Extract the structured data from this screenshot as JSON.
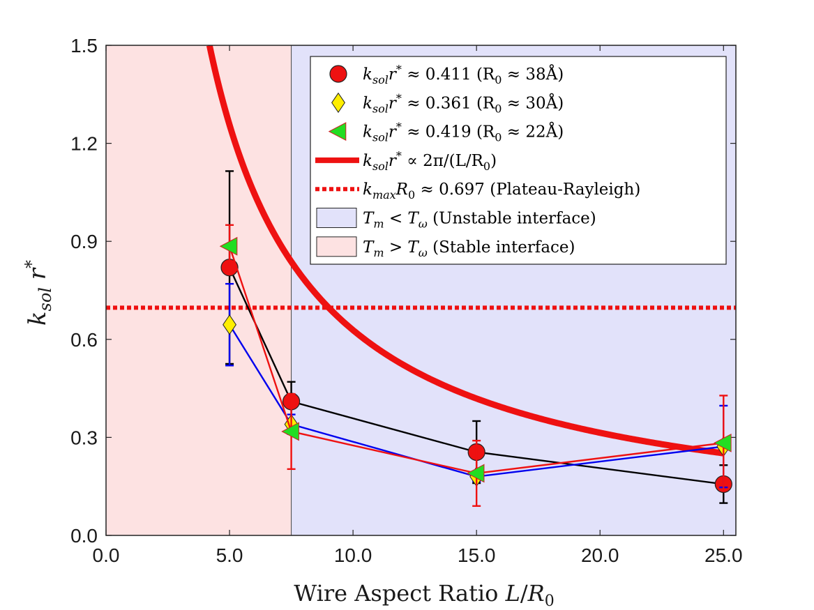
{
  "chart_data": {
    "type": "scatter",
    "xlabel": "Wire Aspect Ratio L/R₀",
    "ylabel": "k_sol r*",
    "xlim": [
      0,
      25.5
    ],
    "ylim": [
      0,
      1.5
    ],
    "x_ticks": [
      "0.0",
      "5.0",
      "10.0",
      "15.0",
      "20.0",
      "25.0"
    ],
    "y_ticks": [
      "0.0",
      "0.3",
      "0.6",
      "0.9",
      "1.2",
      "1.5"
    ],
    "regions": [
      {
        "name": "stable",
        "x_range": [
          0,
          7.5
        ],
        "color": "#fde2e2",
        "label": "Tm > Tω (Stable interface)"
      },
      {
        "name": "unstable",
        "x_range": [
          7.5,
          25.5
        ],
        "color": "#e2e2fa",
        "label": "Tm < Tω (Unstable interface)"
      }
    ],
    "series": [
      {
        "name": "ksol r* ≈ 0.411 (R0 ≈ 38Å)",
        "marker": "circle",
        "color": "#ee1111",
        "line_color": "#000000",
        "x": [
          5,
          7.5,
          15,
          25
        ],
        "y": [
          0.82,
          0.41,
          0.255,
          0.157
        ],
        "err": [
          0.295,
          0.06,
          0.095,
          0.058
        ]
      },
      {
        "name": "ksol r* ≈ 0.361 (R0 ≈ 30Å)",
        "marker": "diamond",
        "color": "#ffee00",
        "line_color": "#0000ee",
        "x": [
          5,
          7.5,
          15,
          25
        ],
        "y": [
          0.645,
          0.34,
          0.18,
          0.272
        ],
        "err": [
          0.125,
          0.03,
          0.015,
          0.125
        ]
      },
      {
        "name": "ksol r* ≈ 0.419 (R0 ≈ 22Å)",
        "marker": "triangle-left",
        "color": "#22dd22",
        "line_color": "#ee1111",
        "x": [
          5,
          7.5,
          15,
          25
        ],
        "y": [
          0.885,
          0.318,
          0.19,
          0.283
        ],
        "err": [
          0.065,
          0.115,
          0.1,
          0.145
        ]
      }
    ],
    "curve": {
      "name": "ksol r* ∝ 2π/(L/R0)",
      "formula": "2*pi/x",
      "x_range": [
        4.19,
        25
      ],
      "color": "#ee1111"
    },
    "hline": {
      "name": "kmax R0 ≈ 0.697 (Plateau-Rayleigh)",
      "y": 0.697,
      "color": "#ee1111",
      "style": "dotted"
    },
    "legend": {
      "placement": "top-right",
      "entries": [
        {
          "pre": "k",
          "sub": "sol",
          "mid": "r",
          "sup": "*",
          "tail": " ≈ 0.411 (R",
          "sub2": "0",
          "end": " ≈ 38Å)"
        },
        {
          "pre": "k",
          "sub": "sol",
          "mid": "r",
          "sup": "*",
          "tail": " ≈ 0.361 (R",
          "sub2": "0",
          "end": " ≈ 30Å)"
        },
        {
          "pre": "k",
          "sub": "sol",
          "mid": "r",
          "sup": "*",
          "tail": " ≈ 0.419 (R",
          "sub2": "0",
          "end": " ≈ 22Å)"
        },
        {
          "pre": "k",
          "sub": "sol",
          "mid": "r",
          "sup": "*",
          "tail": " ∝ 2π/(L/R",
          "sub2": "0",
          "end": ")"
        },
        {
          "pre": "k",
          "sub": "max",
          "mid": "R",
          "sup": "",
          "tail": "",
          "sub2": "0",
          "end": " ≈ 0.697 (Plateau-Rayleigh)"
        },
        {
          "pre": "T",
          "sub": "m",
          "mid": " < T",
          "sup": "",
          "tail": "",
          "sub2": "ω",
          "end": " (Unstable interface)"
        },
        {
          "pre": "T",
          "sub": "m",
          "mid": " > T",
          "sup": "",
          "tail": "",
          "sub2": "ω",
          "end": " (Stable interface)"
        }
      ]
    }
  }
}
